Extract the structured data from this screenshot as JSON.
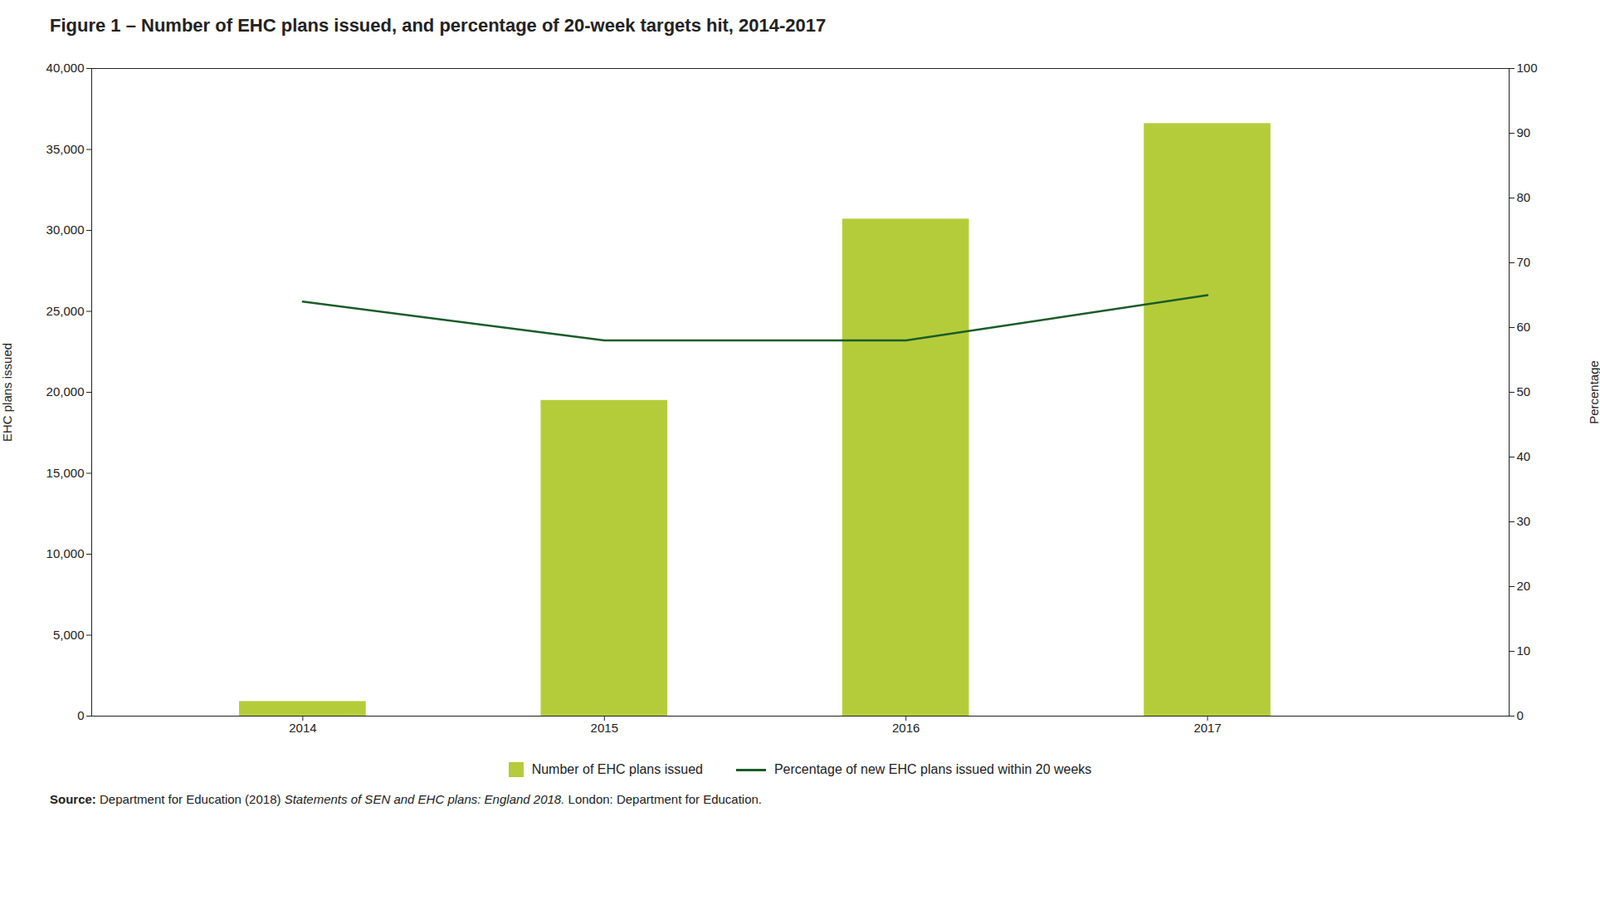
{
  "chart_data": {
    "type": "bar",
    "title": "Figure 1 – Number of EHC plans issued, and percentage of 20-week targets hit, 2014-2017",
    "x": [
      2014,
      2015,
      2016,
      2017
    ],
    "xlim": [
      2013.3,
      2018.0
    ],
    "xticks": [
      2014,
      2015,
      2016,
      2017
    ],
    "series": [
      {
        "name": "Number of EHC plans issued",
        "type": "bar",
        "color": "#b5cc3a",
        "values": [
          900,
          19500,
          30700,
          36600
        ]
      },
      {
        "name": "Percentage of new EHC plans issued within 20 weeks",
        "type": "line",
        "color": "#1a5c2a",
        "axis": "y2",
        "values": [
          64,
          58,
          58,
          65
        ]
      }
    ],
    "ylabel": "EHC plans issued",
    "ylim": [
      0,
      40000
    ],
    "yticks": [
      0,
      {
        "value": 5000,
        "label": "5,000"
      },
      {
        "value": 10000,
        "label": "10,000"
      },
      {
        "value": 15000,
        "label": "15,000"
      },
      {
        "value": 20000,
        "label": "20,000"
      },
      {
        "value": 25000,
        "label": "25,000"
      },
      {
        "value": 30000,
        "label": "30,000"
      },
      {
        "value": 35000,
        "label": "35,000"
      },
      {
        "value": 40000,
        "label": "40,000"
      }
    ],
    "y2label": "Percentage",
    "y2lim": [
      0,
      100
    ],
    "y2ticks": [
      0,
      10,
      20,
      30,
      40,
      50,
      60,
      70,
      80,
      90,
      100
    ],
    "grid": false,
    "legend": "bottom",
    "caption": [
      "Source:",
      "Department for Education (2018) ",
      "Statements of SEN and EHC plans: England 2018.",
      " London: Department for Education."
    ]
  }
}
